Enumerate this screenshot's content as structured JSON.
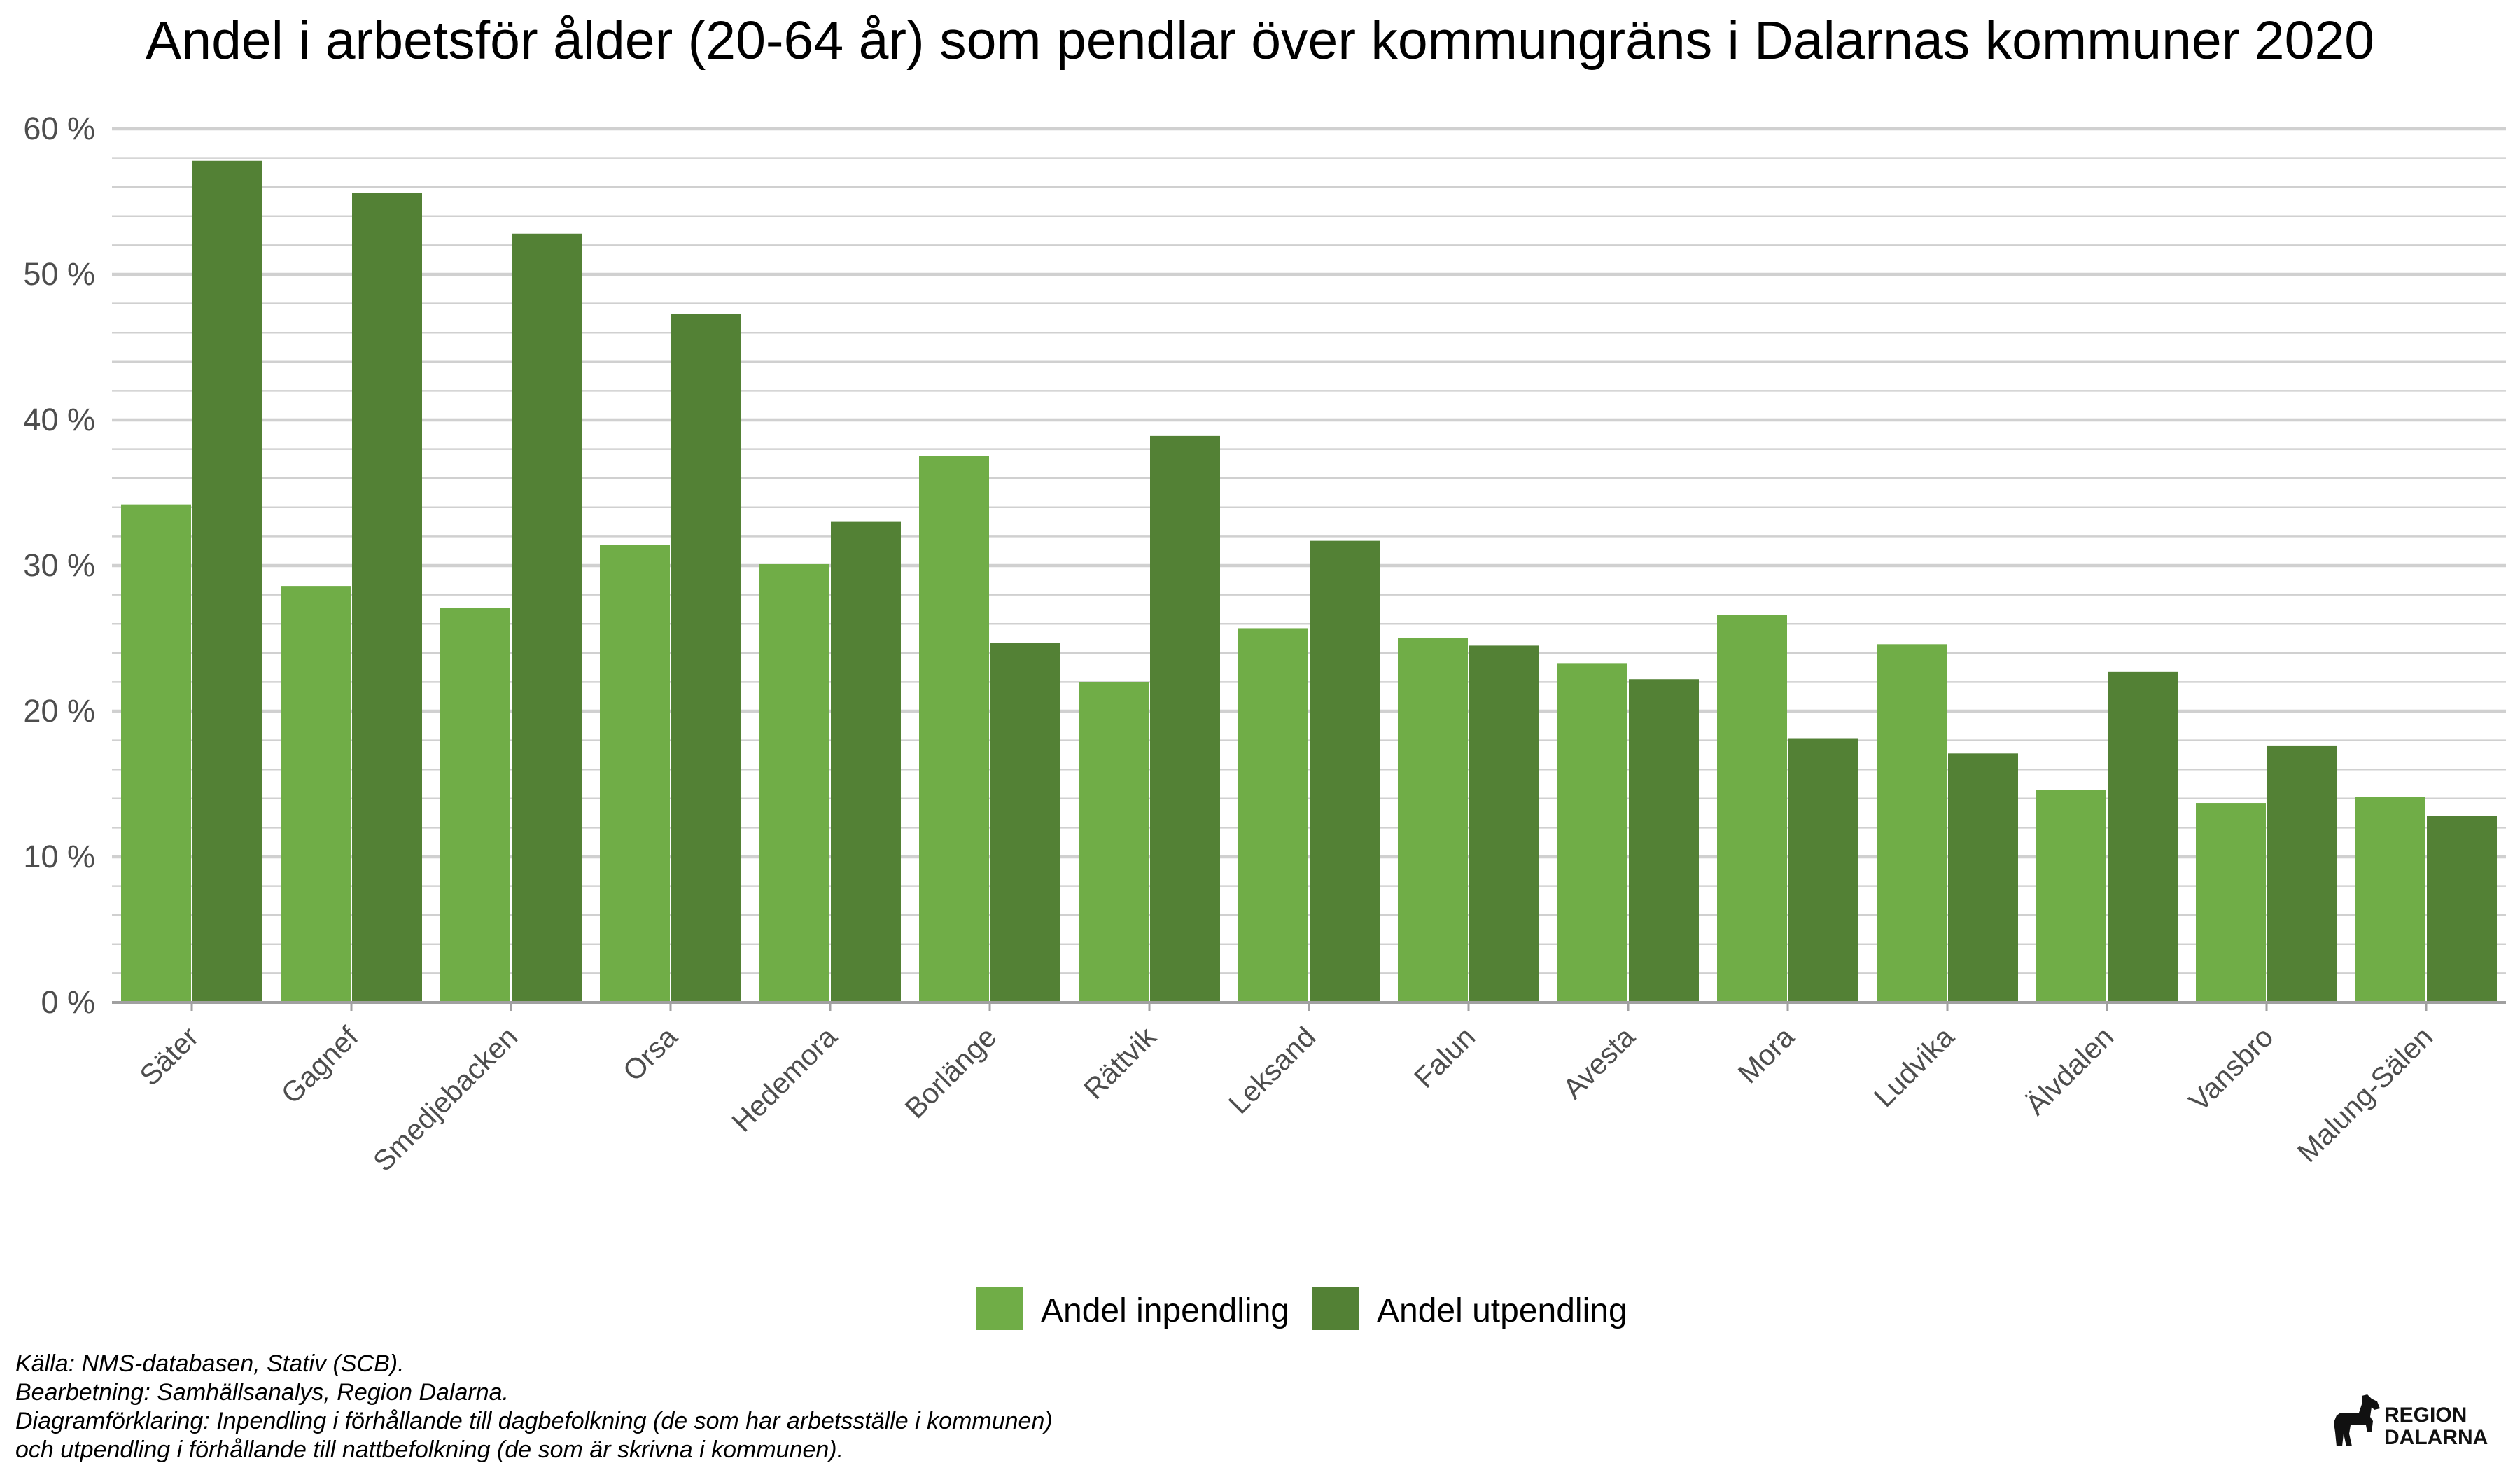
{
  "colors": {
    "inpendling": "#70ad47",
    "utpendling": "#538135",
    "grid": "#d0d0d0",
    "axis": "#a0a0a0"
  },
  "chart_data": {
    "type": "bar",
    "title": "Andel i arbetsför ålder (20-64 år) som pendlar över kommungräns i Dalarnas kommuner 2020",
    "categories": [
      "Säter",
      "Gagnef",
      "Smedjebacken",
      "Orsa",
      "Hedemora",
      "Borlänge",
      "Rättvik",
      "Leksand",
      "Falun",
      "Avesta",
      "Mora",
      "Ludvika",
      "Älvdalen",
      "Vansbro",
      "Malung-Sälen"
    ],
    "series": [
      {
        "name": "Andel inpendling",
        "values": [
          34.2,
          28.6,
          27.1,
          31.4,
          30.1,
          37.5,
          22.0,
          25.7,
          25.0,
          23.3,
          26.6,
          24.6,
          14.6,
          13.7,
          14.1
        ]
      },
      {
        "name": "Andel utpendling",
        "values": [
          57.8,
          55.6,
          52.8,
          47.3,
          33.0,
          24.7,
          38.9,
          31.7,
          24.5,
          22.2,
          18.1,
          17.1,
          22.7,
          17.6,
          12.8
        ]
      }
    ],
    "ylim": [
      0,
      60
    ],
    "yticks": [
      "0 %",
      "10 %",
      "20 %",
      "30 %",
      "40 %",
      "50 %",
      "60 %"
    ],
    "xlabel": "",
    "ylabel": "",
    "grid": true,
    "legend_position": "bottom"
  },
  "notes": [
    "Källa: NMS-databasen, Stativ (SCB).",
    "Bearbetning: Samhällsanalys, Region Dalarna.",
    "Diagramförklaring: Inpendling i förhållande till dagbefolkning (de som har arbetsställe i kommunen)",
    "och utpendling i förhållande till nattbefolkning (de som är skrivna i kommunen)."
  ],
  "logo": {
    "line1": "REGION",
    "line2": "DALARNA",
    "icon": "dala-horse-icon"
  }
}
